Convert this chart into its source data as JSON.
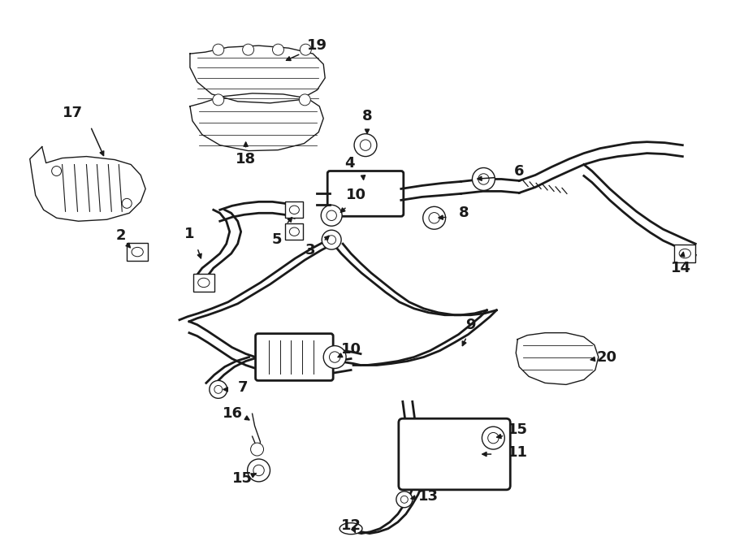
{
  "bg_color": "#ffffff",
  "line_color": "#1a1a1a",
  "fig_w": 9.0,
  "fig_h": 6.61,
  "dpi": 100,
  "lw": 1.4,
  "lw_thin": 1.0,
  "lw_thick": 2.0,
  "fs": 13
}
